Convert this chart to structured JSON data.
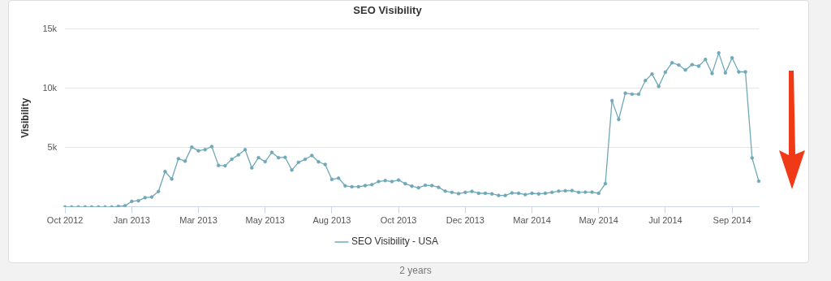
{
  "chart_data": {
    "type": "line",
    "title": "SEO Visibility",
    "ylabel": "Visibility",
    "categories": [
      "Oct 2012",
      null,
      null,
      null,
      null,
      null,
      null,
      null,
      null,
      null,
      "Jan 2013",
      null,
      null,
      null,
      null,
      null,
      null,
      null,
      null,
      null,
      "Mar 2013",
      null,
      null,
      null,
      null,
      null,
      null,
      null,
      null,
      null,
      "May 2013",
      null,
      null,
      null,
      null,
      null,
      null,
      null,
      null,
      null,
      "Aug 2013",
      null,
      null,
      null,
      null,
      null,
      null,
      null,
      null,
      null,
      "Oct 2013",
      null,
      null,
      null,
      null,
      null,
      null,
      null,
      null,
      null,
      "Dec 2013",
      null,
      null,
      null,
      null,
      null,
      null,
      null,
      null,
      null,
      "Mar 2014",
      null,
      null,
      null,
      null,
      null,
      null,
      null,
      null,
      null,
      "May 2014",
      null,
      null,
      null,
      null,
      null,
      null,
      null,
      null,
      null,
      "Jul 2014",
      null,
      null,
      null,
      null,
      null,
      null,
      null,
      null,
      null,
      "Sep 2014",
      null,
      null,
      null,
      null
    ],
    "series": [
      {
        "name": "SEO Visibility - USA",
        "color": "#6fa8b8",
        "values": [
          0,
          0,
          0,
          0,
          0,
          0,
          0,
          0,
          50,
          100,
          470,
          520,
          780,
          840,
          1300,
          2980,
          2350,
          4070,
          3860,
          5040,
          4730,
          4830,
          5090,
          3500,
          3470,
          4020,
          4390,
          4830,
          3290,
          4150,
          3810,
          4600,
          4150,
          4180,
          3110,
          3760,
          4020,
          4330,
          3800,
          3580,
          2320,
          2430,
          1780,
          1700,
          1700,
          1800,
          1880,
          2140,
          2220,
          2140,
          2270,
          1960,
          1750,
          1620,
          1830,
          1800,
          1650,
          1330,
          1230,
          1120,
          1230,
          1310,
          1150,
          1150,
          1100,
          970,
          970,
          1180,
          1150,
          1040,
          1150,
          1100,
          1150,
          1230,
          1330,
          1360,
          1380,
          1230,
          1250,
          1250,
          1150,
          1960,
          8960,
          7370,
          9590,
          9500,
          9500,
          10650,
          11200,
          10160,
          11360,
          12150,
          11960,
          11540,
          11990,
          11860,
          12430,
          11250,
          12980,
          11300,
          12560,
          11380,
          11380,
          4130,
          2170
        ]
      }
    ],
    "ylim": [
      0,
      15000
    ],
    "yticks": [
      {
        "value": 0,
        "label": null
      },
      {
        "value": 5000,
        "label": "5k"
      },
      {
        "value": 10000,
        "label": "10k"
      },
      {
        "value": 15000,
        "label": "15k"
      }
    ],
    "grid": "y",
    "legend": "bottom",
    "marker": "circle",
    "line_style": "solid",
    "annotations": [
      "2 years"
    ]
  }
}
